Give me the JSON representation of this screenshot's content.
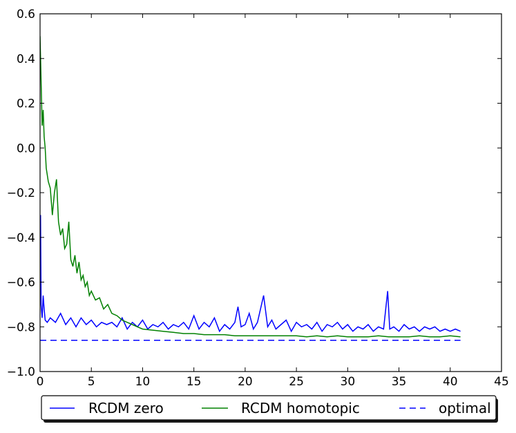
{
  "chart_data": {
    "type": "line",
    "title": "",
    "xlabel": "",
    "ylabel": "",
    "xlim": [
      0,
      45
    ],
    "ylim": [
      -1.0,
      0.6
    ],
    "xticks": [
      0,
      5,
      10,
      15,
      20,
      25,
      30,
      35,
      40,
      45
    ],
    "xtick_labels": [
      "0",
      "5",
      "10",
      "15",
      "20",
      "25",
      "30",
      "35",
      "40",
      "45"
    ],
    "yticks": [
      -1.0,
      -0.8,
      -0.6,
      -0.4,
      -0.2,
      0.0,
      0.2,
      0.4,
      0.6
    ],
    "ytick_labels": [
      "−1.0",
      "−0.8",
      "−0.6",
      "−0.4",
      "−0.2",
      "0.0",
      "0.2",
      "0.4",
      "0.6"
    ],
    "grid": false,
    "legend_position": "bottom-below-plot",
    "series": [
      {
        "name": "RCDM zero",
        "color": "#0000ff",
        "style": "solid",
        "x": [
          0,
          0.05,
          0.1,
          0.2,
          0.3,
          0.4,
          0.5,
          0.7,
          1,
          1.5,
          2,
          2.5,
          3,
          3.5,
          4,
          4.5,
          5,
          5.5,
          6,
          6.5,
          7,
          7.5,
          8,
          8.5,
          9,
          9.5,
          10,
          10.5,
          11,
          11.5,
          12,
          12.5,
          13,
          13.5,
          14,
          14.5,
          15,
          15.5,
          16,
          16.5,
          17,
          17.5,
          18,
          18.5,
          19,
          19.3,
          19.6,
          20,
          20.4,
          20.8,
          21.2,
          21.8,
          22.2,
          22.6,
          23,
          23.5,
          24,
          24.5,
          25,
          25.5,
          26,
          26.5,
          27,
          27.5,
          28,
          28.5,
          29,
          29.5,
          30,
          30.5,
          31,
          31.5,
          32,
          32.5,
          33,
          33.5,
          33.9,
          34.1,
          34.5,
          35,
          35.5,
          36,
          36.5,
          37,
          37.5,
          38,
          38.5,
          39,
          39.5,
          40,
          40.5,
          41
        ],
        "y": [
          -0.6,
          -0.3,
          -0.7,
          -0.76,
          -0.66,
          -0.72,
          -0.77,
          -0.78,
          -0.76,
          -0.78,
          -0.74,
          -0.79,
          -0.76,
          -0.8,
          -0.76,
          -0.79,
          -0.77,
          -0.8,
          -0.78,
          -0.79,
          -0.78,
          -0.8,
          -0.76,
          -0.81,
          -0.78,
          -0.8,
          -0.77,
          -0.81,
          -0.79,
          -0.8,
          -0.78,
          -0.81,
          -0.79,
          -0.8,
          -0.78,
          -0.81,
          -0.75,
          -0.81,
          -0.78,
          -0.8,
          -0.76,
          -0.82,
          -0.79,
          -0.81,
          -0.78,
          -0.71,
          -0.8,
          -0.79,
          -0.74,
          -0.81,
          -0.78,
          -0.66,
          -0.8,
          -0.77,
          -0.81,
          -0.79,
          -0.77,
          -0.82,
          -0.78,
          -0.8,
          -0.79,
          -0.81,
          -0.78,
          -0.82,
          -0.79,
          -0.8,
          -0.78,
          -0.81,
          -0.79,
          -0.82,
          -0.8,
          -0.81,
          -0.79,
          -0.82,
          -0.8,
          -0.81,
          -0.64,
          -0.81,
          -0.8,
          -0.82,
          -0.79,
          -0.81,
          -0.8,
          -0.82,
          -0.8,
          -0.81,
          -0.8,
          -0.82,
          -0.81,
          -0.82,
          -0.81,
          -0.82
        ]
      },
      {
        "name": "RCDM homotopic",
        "color": "#008000",
        "style": "solid",
        "x": [
          0,
          0.1,
          0.2,
          0.3,
          0.4,
          0.5,
          0.6,
          0.8,
          1.0,
          1.2,
          1.4,
          1.6,
          1.8,
          2.0,
          2.2,
          2.4,
          2.6,
          2.8,
          3.0,
          3.2,
          3.4,
          3.6,
          3.8,
          4.0,
          4.2,
          4.4,
          4.6,
          4.8,
          5.0,
          5.4,
          5.8,
          6.2,
          6.6,
          7.0,
          7.5,
          8.0,
          8.5,
          9.0,
          9.5,
          10,
          11,
          12,
          13,
          14,
          15,
          16,
          17,
          18,
          19,
          20,
          21,
          22,
          23,
          24,
          25,
          26,
          27,
          28,
          29,
          30,
          31,
          32,
          33,
          34,
          35,
          36,
          37,
          38,
          39,
          40,
          41
        ],
        "y": [
          0.5,
          0.3,
          0.1,
          0.17,
          0.05,
          0.0,
          -0.09,
          -0.15,
          -0.18,
          -0.3,
          -0.2,
          -0.14,
          -0.33,
          -0.39,
          -0.36,
          -0.45,
          -0.43,
          -0.33,
          -0.5,
          -0.53,
          -0.48,
          -0.56,
          -0.51,
          -0.59,
          -0.57,
          -0.62,
          -0.6,
          -0.66,
          -0.64,
          -0.68,
          -0.67,
          -0.72,
          -0.7,
          -0.74,
          -0.75,
          -0.77,
          -0.78,
          -0.79,
          -0.8,
          -0.81,
          -0.815,
          -0.82,
          -0.825,
          -0.83,
          -0.83,
          -0.835,
          -0.835,
          -0.835,
          -0.84,
          -0.84,
          -0.84,
          -0.84,
          -0.84,
          -0.84,
          -0.84,
          -0.845,
          -0.84,
          -0.845,
          -0.84,
          -0.845,
          -0.845,
          -0.845,
          -0.84,
          -0.845,
          -0.845,
          -0.845,
          -0.84,
          -0.845,
          -0.845,
          -0.84,
          -0.845
        ]
      },
      {
        "name": "optimal",
        "color": "#0000ff",
        "style": "dashed",
        "x": [
          0,
          41
        ],
        "y": [
          -0.86,
          -0.86
        ]
      }
    ]
  }
}
